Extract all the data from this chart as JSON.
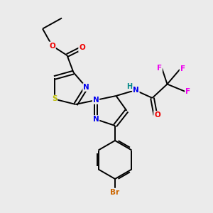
{
  "background_color": "#ebebeb",
  "atom_colors": {
    "N": "#0000ee",
    "O": "#ee0000",
    "S": "#bbbb00",
    "F": "#ee00ee",
    "Br": "#cc6600",
    "C": "#000000",
    "H": "#008888"
  },
  "figsize": [
    3.0,
    3.0
  ],
  "dpi": 100
}
